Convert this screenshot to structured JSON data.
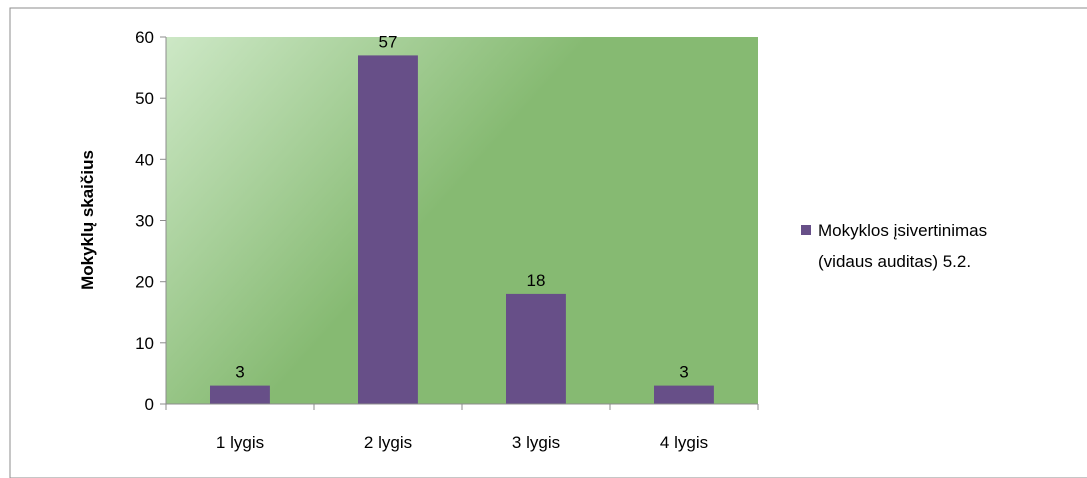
{
  "chart_data": {
    "type": "bar",
    "categories": [
      "1 lygis",
      "2 lygis",
      "3 lygis",
      "4 lygis"
    ],
    "series": [
      {
        "name": "Mokyklos įsivertinimas (vidaus auditas) 5.2.",
        "values": [
          3,
          57,
          18,
          3
        ],
        "color": "#674f88"
      }
    ],
    "title": "",
    "xlabel": "",
    "ylabel": "Mokyklų skaičius",
    "ylim": [
      0,
      60
    ],
    "yticks": [
      0,
      10,
      20,
      30,
      40,
      50,
      60
    ],
    "grid": false,
    "legend_position": "right",
    "legend_lines": [
      "Mokyklos įsivertinimas",
      "(vidaus auditas) 5.2."
    ],
    "plot_background": [
      "#cde8c6",
      "#86ba72"
    ],
    "frame_color": "#8c8c8c"
  }
}
